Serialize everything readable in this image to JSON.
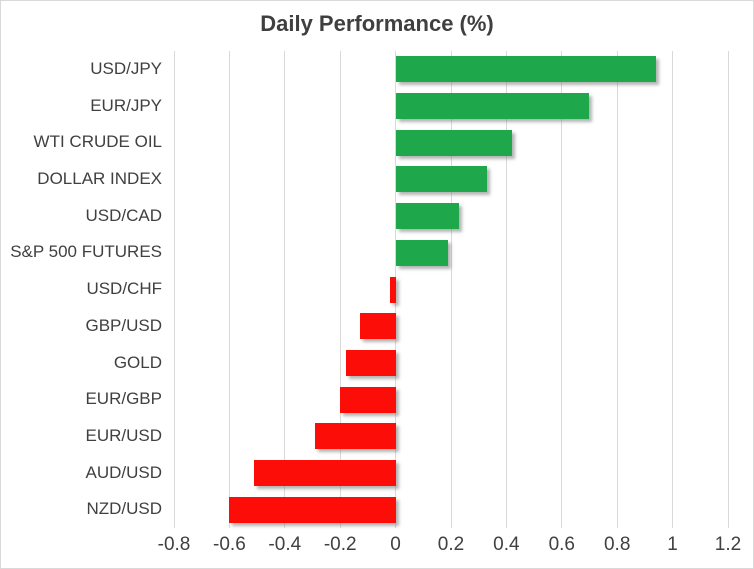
{
  "chart": {
    "title": "Daily Performance (%)"
  },
  "chart_data": {
    "type": "bar",
    "orientation": "horizontal",
    "title": "Daily Performance (%)",
    "categories": [
      "USD/JPY",
      "EUR/JPY",
      "WTI CRUDE OIL",
      "DOLLAR INDEX",
      "USD/CAD",
      "S&P 500 FUTURES",
      "USD/CHF",
      "GBP/USD",
      "GOLD",
      "EUR/GBP",
      "EUR/USD",
      "AUD/USD",
      "NZD/USD"
    ],
    "values": [
      0.94,
      0.7,
      0.42,
      0.33,
      0.23,
      0.19,
      -0.02,
      -0.13,
      -0.18,
      -0.2,
      -0.29,
      -0.51,
      -0.6
    ],
    "xlim": [
      -0.8,
      1.2
    ],
    "xticks": [
      -0.8,
      -0.6,
      -0.4,
      -0.2,
      0,
      0.2,
      0.4,
      0.6,
      0.8,
      1,
      1.2
    ],
    "xtick_labels": [
      "-0.8",
      "-0.6",
      "-0.4",
      "-0.2",
      "0",
      "0.2",
      "0.4",
      "0.6",
      "0.8",
      "1",
      "1.2"
    ],
    "grid": true,
    "legend": false,
    "colors": {
      "positive": "#1EA74B",
      "negative": "#FC0D07",
      "text": "#404040",
      "title_text": "#3F3F3F",
      "gridline": "#D9D9D9",
      "background": "#FFFFFF"
    }
  }
}
